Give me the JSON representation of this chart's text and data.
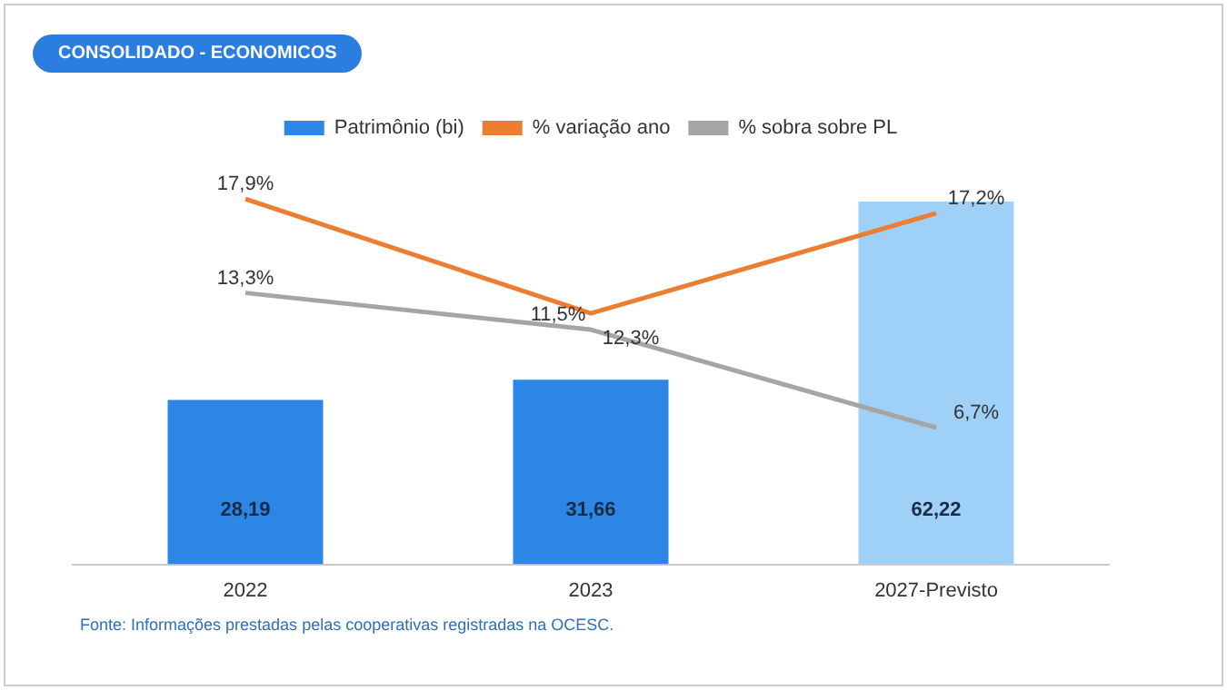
{
  "chart_data": {
    "type": "bar",
    "title": "CONSOLIDADO - ECONOMICOS",
    "categories": [
      "2022",
      "2023",
      "2027-Previsto"
    ],
    "series": [
      {
        "name": "Patrimônio (bi)",
        "colors": [
          "#2b86e6",
          "#2b86e6",
          "#9fd0f7"
        ],
        "values": [
          28.19,
          31.66,
          62.22
        ],
        "value_labels": [
          "28,19",
          "31,66",
          "62,22"
        ]
      },
      {
        "name": "% variação ano",
        "type": "line",
        "axis": "y2",
        "color": "#ed7d31",
        "values": [
          17.9,
          12.3,
          17.2
        ],
        "value_labels": [
          "17,9%",
          "12,3%",
          "17,2%"
        ]
      },
      {
        "name": "% sobra sobre PL",
        "type": "line",
        "axis": "y2",
        "color": "#a5a5a5",
        "values": [
          13.3,
          11.5,
          6.7
        ],
        "value_labels": [
          "13,3%",
          "11,5%",
          "6,7%"
        ]
      }
    ],
    "tick_labels": "x",
    "grid": false,
    "legend": "top",
    "marker": "none",
    "annotations": [
      "Fonte: Informações prestadas pelas cooperativas registradas na OCESC."
    ]
  }
}
